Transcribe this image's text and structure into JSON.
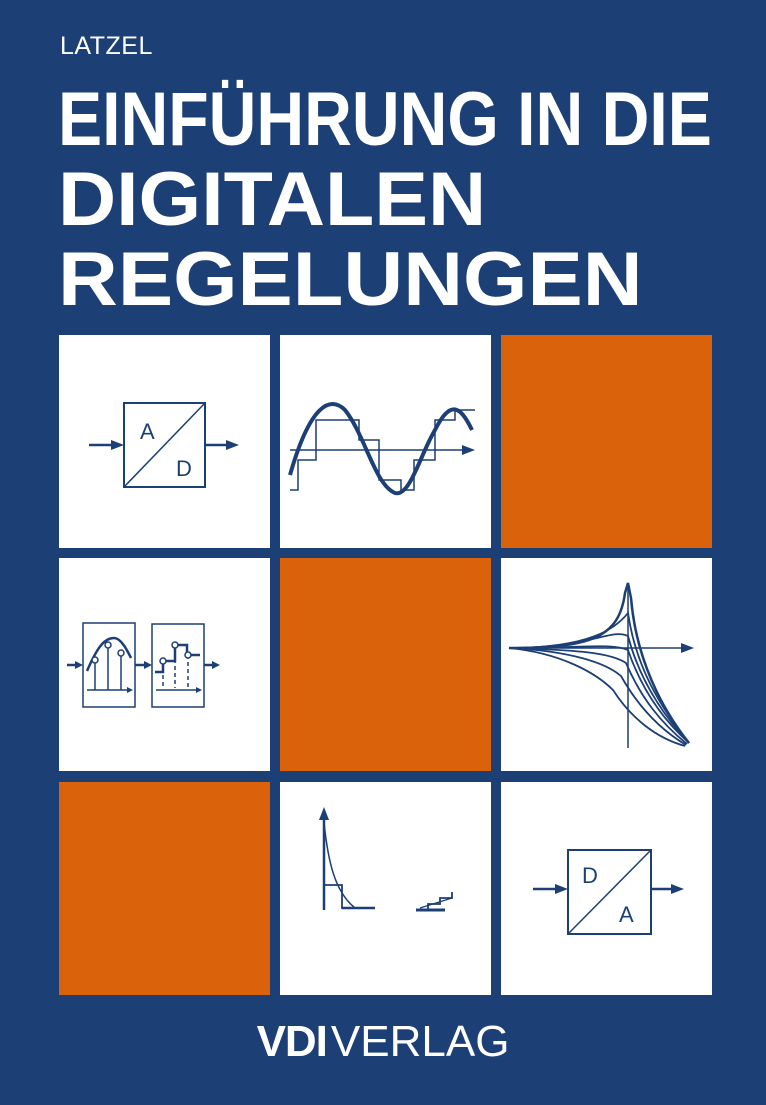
{
  "cover": {
    "author": "LATZEL",
    "title_lines": [
      "EINFÜHRUNG IN DIE",
      "DIGITALEN",
      "REGELUNGEN"
    ],
    "publisher_bold": "VDI",
    "publisher_regular": "VERLAG"
  },
  "tiles": {
    "ad_converter": {
      "top": "A",
      "bottom": "D"
    },
    "da_converter": {
      "top": "D",
      "bottom": "A"
    }
  },
  "colors": {
    "background": "#1c3f76",
    "accent": "#d9620a",
    "tile": "#ffffff"
  }
}
